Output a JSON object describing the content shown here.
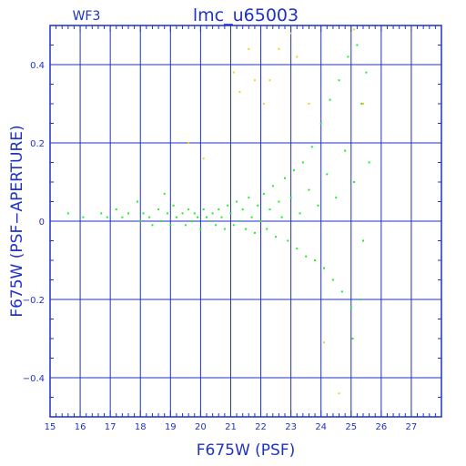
{
  "chart_data": {
    "type": "scatter",
    "title": "lmc_u65003",
    "subtitle": "WF3",
    "xlabel": "F675W (PSF)",
    "ylabel": "F675W (PSF−APERTURE)",
    "xlim": [
      15,
      28
    ],
    "ylim": [
      -0.5,
      0.5
    ],
    "x_ticks": [
      15,
      16,
      17,
      18,
      19,
      20,
      21,
      22,
      23,
      24,
      25,
      26,
      27
    ],
    "y_ticks": [
      -0.4,
      -0.2,
      0,
      0.2,
      0.4
    ],
    "y_tick_labels": [
      "−0.4",
      "−0.2",
      "0",
      "0.2",
      "0.4"
    ],
    "grid": true,
    "colors": {
      "frame": "#1e32c8",
      "grid": "#1e32c8",
      "main_series": "#22ee22",
      "outlier_series": "#f4d21a"
    },
    "series": [
      {
        "color": "#22ee22",
        "points": [
          [
            15.6,
            0.02
          ],
          [
            16.1,
            0.01
          ],
          [
            16.7,
            0.02
          ],
          [
            16.9,
            0.01
          ],
          [
            17.2,
            0.03
          ],
          [
            17.4,
            0.01
          ],
          [
            17.6,
            0.02
          ],
          [
            17.9,
            0.05
          ],
          [
            18.0,
            0.0
          ],
          [
            18.1,
            0.02
          ],
          [
            18.3,
            0.01
          ],
          [
            18.4,
            -0.01
          ],
          [
            18.6,
            0.03
          ],
          [
            18.7,
            0.0
          ],
          [
            18.8,
            0.07
          ],
          [
            18.9,
            0.02
          ],
          [
            19.0,
            -0.01
          ],
          [
            19.1,
            0.04
          ],
          [
            19.2,
            0.01
          ],
          [
            19.4,
            0.02
          ],
          [
            19.5,
            -0.01
          ],
          [
            19.6,
            0.03
          ],
          [
            19.7,
            0.0
          ],
          [
            19.8,
            0.02
          ],
          [
            19.9,
            0.01
          ],
          [
            20.0,
            -0.02
          ],
          [
            20.1,
            0.03
          ],
          [
            20.2,
            0.01
          ],
          [
            20.3,
            0.0
          ],
          [
            20.4,
            0.02
          ],
          [
            20.5,
            -0.01
          ],
          [
            20.6,
            0.03
          ],
          [
            20.7,
            0.01
          ],
          [
            20.8,
            -0.02
          ],
          [
            20.9,
            0.04
          ],
          [
            21.0,
            0.02
          ],
          [
            21.1,
            -0.01
          ],
          [
            21.2,
            0.05
          ],
          [
            21.3,
            0.0
          ],
          [
            21.4,
            0.03
          ],
          [
            21.5,
            -0.02
          ],
          [
            21.6,
            0.06
          ],
          [
            21.7,
            0.01
          ],
          [
            21.8,
            -0.03
          ],
          [
            21.9,
            0.04
          ],
          [
            22.0,
            0.0
          ],
          [
            22.1,
            0.07
          ],
          [
            22.2,
            -0.02
          ],
          [
            22.3,
            0.03
          ],
          [
            22.4,
            0.09
          ],
          [
            22.5,
            -0.04
          ],
          [
            22.6,
            0.05
          ],
          [
            22.7,
            0.01
          ],
          [
            22.8,
            0.11
          ],
          [
            22.9,
            -0.05
          ],
          [
            23.0,
            0.06
          ],
          [
            23.1,
            0.13
          ],
          [
            23.2,
            -0.07
          ],
          [
            23.3,
            0.02
          ],
          [
            23.4,
            0.15
          ],
          [
            23.5,
            -0.09
          ],
          [
            23.6,
            0.08
          ],
          [
            23.7,
            0.19
          ],
          [
            23.8,
            -0.1
          ],
          [
            23.9,
            0.04
          ],
          [
            24.0,
            0.25
          ],
          [
            24.1,
            -0.12
          ],
          [
            24.2,
            0.12
          ],
          [
            24.3,
            0.31
          ],
          [
            24.4,
            -0.15
          ],
          [
            24.5,
            0.06
          ],
          [
            24.6,
            0.36
          ],
          [
            24.7,
            -0.18
          ],
          [
            24.8,
            0.18
          ],
          [
            24.9,
            0.42
          ],
          [
            25.0,
            -0.22
          ],
          [
            25.05,
            -0.3
          ],
          [
            25.1,
            0.1
          ],
          [
            25.2,
            0.45
          ],
          [
            25.3,
            -0.2
          ],
          [
            25.35,
            0.3
          ],
          [
            25.4,
            -0.05
          ],
          [
            25.5,
            0.38
          ],
          [
            25.6,
            0.15
          ]
        ]
      },
      {
        "color": "#f4d21a",
        "points": [
          [
            19.6,
            0.2
          ],
          [
            20.1,
            0.16
          ],
          [
            21.1,
            0.38
          ],
          [
            21.3,
            0.33
          ],
          [
            21.6,
            0.44
          ],
          [
            21.8,
            0.36
          ],
          [
            22.1,
            0.3
          ],
          [
            22.3,
            0.36
          ],
          [
            22.6,
            0.44
          ],
          [
            23.0,
            0.48
          ],
          [
            23.2,
            0.42
          ],
          [
            23.6,
            0.3
          ],
          [
            24.1,
            -0.31
          ],
          [
            24.6,
            -0.44
          ],
          [
            25.1,
            0.49
          ],
          [
            25.4,
            0.3
          ]
        ]
      }
    ]
  }
}
